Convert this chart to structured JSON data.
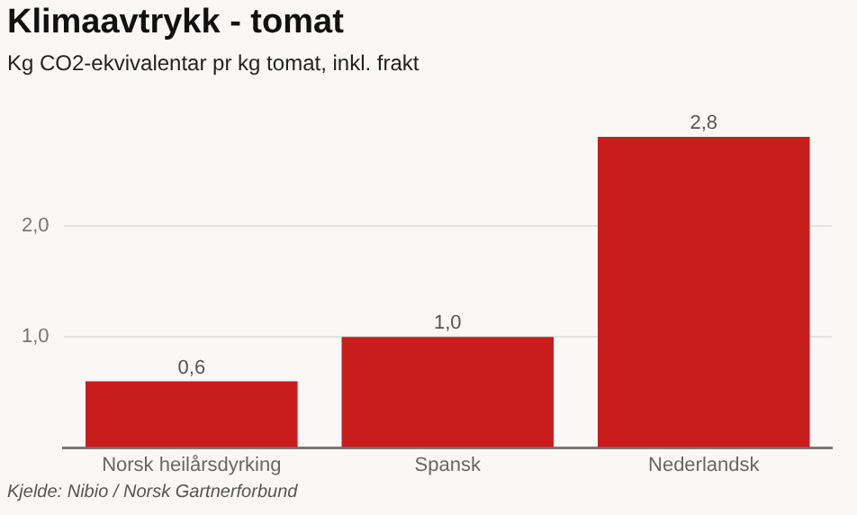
{
  "chart_data": {
    "type": "bar",
    "title": "Klimaavtrykk - tomat",
    "subtitle": "Kg CO2-ekvivalentar pr kg tomat, inkl. frakt",
    "categories": [
      "Norsk heilårsdyrking",
      "Spansk",
      "Nederlandsk"
    ],
    "values": [
      0.6,
      1.0,
      2.8
    ],
    "value_labels": [
      "0,6",
      "1,0",
      "2,8"
    ],
    "color": "#c81d1d",
    "ylim": [
      0,
      2.8
    ],
    "yticks": [
      {
        "value": 0,
        "label": null
      },
      {
        "value": 1,
        "label": "1,0"
      },
      {
        "value": 2,
        "label": "2,0"
      }
    ],
    "grid": "y",
    "legend": false,
    "annotations": [
      "Kjelde: Nibio / Norsk Gartnerforbund"
    ]
  }
}
